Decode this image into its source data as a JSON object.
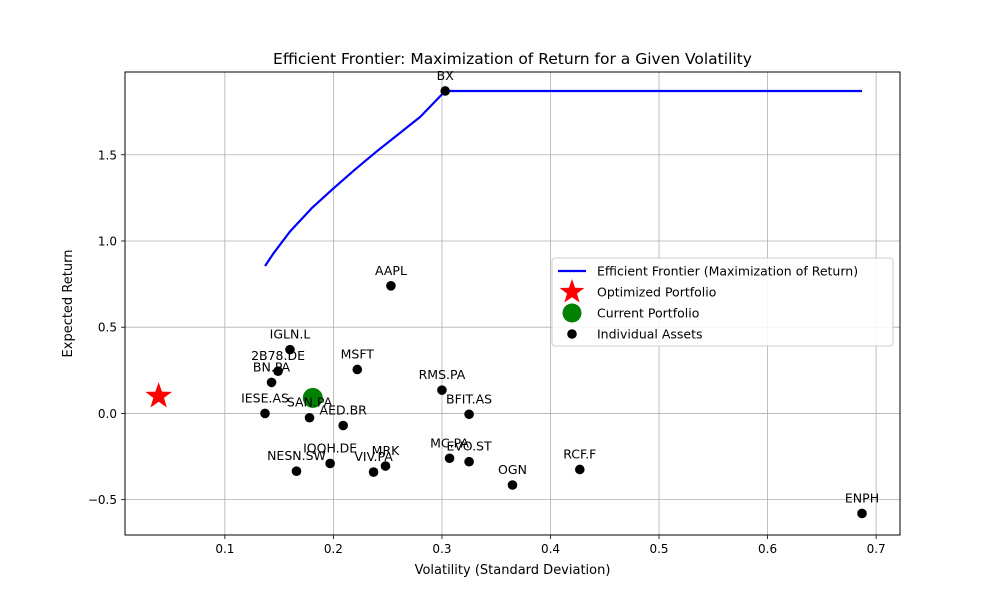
{
  "chart_data": {
    "type": "scatter",
    "title": "Efficient Frontier: Maximization of Return for a Given Volatility",
    "xlabel": "Volatility (Standard Deviation)",
    "ylabel": "Expected Return",
    "xlim": [
      0.008,
      0.722
    ],
    "ylim": [
      -0.705,
      1.98
    ],
    "x_ticks": [
      0.1,
      0.2,
      0.3,
      0.4,
      0.5,
      0.6,
      0.7
    ],
    "x_tick_labels": [
      "0.1",
      "0.2",
      "0.3",
      "0.4",
      "0.5",
      "0.6",
      "0.7"
    ],
    "y_ticks": [
      -0.5,
      0.0,
      0.5,
      1.0,
      1.5
    ],
    "y_tick_labels": [
      "−0.5",
      "0.0",
      "0.5",
      "1.0",
      "1.5"
    ],
    "grid": true,
    "legend_position": "center-right",
    "series": [
      {
        "name": "Efficient Frontier (Maximization of Return)",
        "kind": "line",
        "color": "#0000ff",
        "points": [
          [
            0.137,
            0.855
          ],
          [
            0.145,
            0.93
          ],
          [
            0.16,
            1.055
          ],
          [
            0.18,
            1.19
          ],
          [
            0.2,
            1.305
          ],
          [
            0.22,
            1.415
          ],
          [
            0.24,
            1.52
          ],
          [
            0.26,
            1.62
          ],
          [
            0.28,
            1.72
          ],
          [
            0.303,
            1.87
          ],
          [
            0.45,
            1.87
          ],
          [
            0.6,
            1.87
          ],
          [
            0.687,
            1.87
          ]
        ]
      },
      {
        "name": "Optimized Portfolio",
        "kind": "star",
        "color": "#ff0000",
        "points": [
          [
            0.039,
            0.1
          ]
        ]
      },
      {
        "name": "Current Portfolio",
        "kind": "large-dot",
        "color": "#008000",
        "points": [
          [
            0.181,
            0.09
          ]
        ]
      },
      {
        "name": "Individual Assets",
        "kind": "dot",
        "color": "#000000",
        "points": [
          {
            "label": "BX",
            "x": 0.303,
            "y": 1.87
          },
          {
            "label": "AAPL",
            "x": 0.253,
            "y": 0.74
          },
          {
            "label": "IGLN.L",
            "x": 0.16,
            "y": 0.37
          },
          {
            "label": "2B78.DE",
            "x": 0.149,
            "y": 0.245
          },
          {
            "label": "BN.PA",
            "x": 0.143,
            "y": 0.18
          },
          {
            "label": "MSFT",
            "x": 0.222,
            "y": 0.255
          },
          {
            "label": "RMS.PA",
            "x": 0.3,
            "y": 0.135
          },
          {
            "label": "IESE.AS",
            "x": 0.137,
            "y": 0.0
          },
          {
            "label": "SAN.PA",
            "x": 0.178,
            "y": -0.025
          },
          {
            "label": "AED.BR",
            "x": 0.209,
            "y": -0.07
          },
          {
            "label": "BFIT.AS",
            "x": 0.325,
            "y": -0.005
          },
          {
            "label": "IQQH.DE",
            "x": 0.197,
            "y": -0.29
          },
          {
            "label": "NESN.SW",
            "x": 0.166,
            "y": -0.335
          },
          {
            "label": "VIV.PA",
            "x": 0.237,
            "y": -0.34
          },
          {
            "label": "MRK",
            "x": 0.248,
            "y": -0.305
          },
          {
            "label": "MC.PA",
            "x": 0.307,
            "y": -0.26
          },
          {
            "label": "EVO.ST",
            "x": 0.325,
            "y": -0.28
          },
          {
            "label": "OGN",
            "x": 0.365,
            "y": -0.415
          },
          {
            "label": "RCF.F",
            "x": 0.427,
            "y": -0.325
          },
          {
            "label": "ENPH",
            "x": 0.687,
            "y": -0.58
          }
        ]
      }
    ]
  }
}
